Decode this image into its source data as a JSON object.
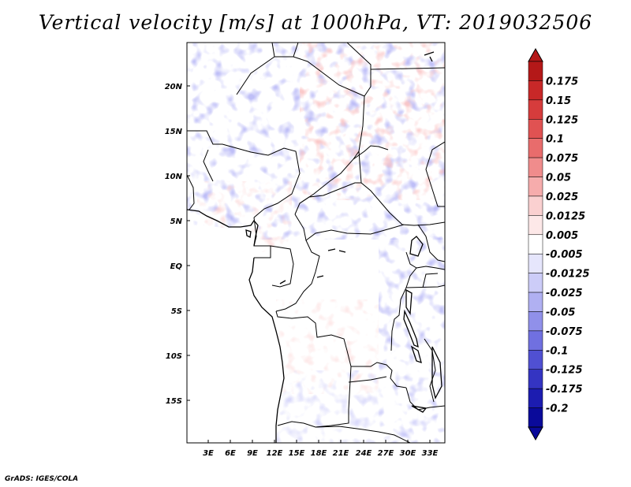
{
  "title": "Vertical velocity [m/s] at 1000hPa, VT: 2019032506",
  "credit": "GrADS: IGES/COLA",
  "map": {
    "lat_ticks": [
      "20N",
      "15N",
      "10N",
      "5N",
      "EQ",
      "5S",
      "10S",
      "15S"
    ],
    "lon_ticks": [
      "3E",
      "6E",
      "9E",
      "12E",
      "15E",
      "18E",
      "21E",
      "24E",
      "27E",
      "30E",
      "33E"
    ]
  },
  "colorbar": {
    "labels": [
      "0.175",
      "0.15",
      "0.125",
      "0.1",
      "0.075",
      "0.05",
      "0.025",
      "0.0125",
      "0.005",
      "-0.005",
      "-0.0125",
      "-0.025",
      "-0.05",
      "-0.075",
      "-0.1",
      "-0.125",
      "-0.175",
      "-0.2"
    ],
    "colors": [
      "#b41818",
      "#c82828",
      "#d63c3c",
      "#e05252",
      "#e86c6c",
      "#f08c8c",
      "#f6acac",
      "#fad0d0",
      "#fde8e8",
      "#ffffff",
      "#e6e6fc",
      "#ccccf8",
      "#b0b0f2",
      "#9090ea",
      "#7070e0",
      "#5050d2",
      "#3434c2",
      "#1c1cb0",
      "#0a0a9a"
    ]
  },
  "palette": {
    "positive": "#f07878",
    "negative": "#7070e6",
    "border": "#000000"
  }
}
